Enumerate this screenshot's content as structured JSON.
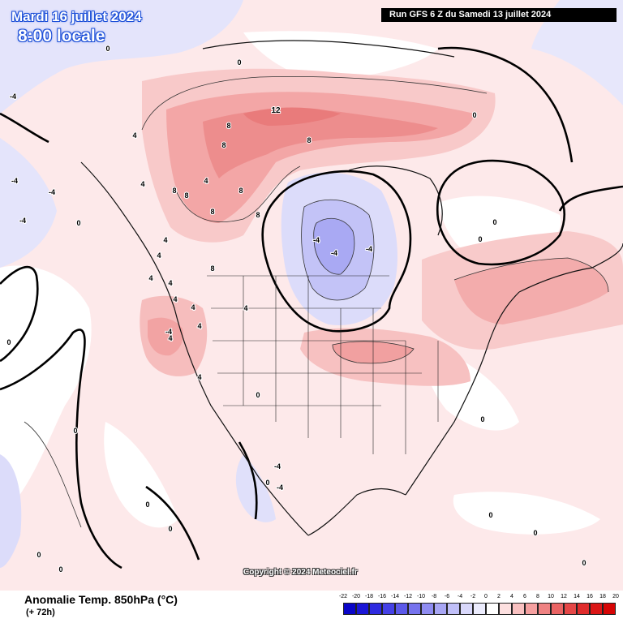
{
  "header": {
    "date": "Mardi 16 juillet 2024",
    "time": "8:00 locale",
    "run": "Run GFS 6 Z du Samedi 13 juillet 2024"
  },
  "copyright": "Copyright © 2024 Meteociel.fr",
  "variable": {
    "title": "Anomalie Temp. 850hPa (°C)",
    "lead": "(+ 72h)"
  },
  "legend": {
    "ticks": [
      "-22",
      "-20",
      "-18",
      "-16",
      "-14",
      "-12",
      "-10",
      "-8",
      "-6",
      "-4",
      "-2",
      "0",
      "2",
      "4",
      "6",
      "8",
      "10",
      "12",
      "14",
      "16",
      "18",
      "20"
    ],
    "colors": [
      "#0a05c8",
      "#1b16d6",
      "#2e2ae0",
      "#4541e6",
      "#5c59ea",
      "#7673ee",
      "#8f8cf1",
      "#a8a6f4",
      "#c0bff8",
      "#d9d8fb",
      "#ececfd",
      "#ffffff",
      "#fde0e0",
      "#f9c1c1",
      "#f5a0a0",
      "#ef8282",
      "#ea6464",
      "#e54747",
      "#e02c2c",
      "#db1616",
      "#d60505"
    ]
  },
  "map_labels": [
    {
      "text": "12",
      "color": "#000000"
    },
    {
      "text": "8",
      "color": "#000000"
    },
    {
      "text": "8",
      "color": "#000000"
    },
    {
      "text": "8",
      "color": "#000000"
    },
    {
      "text": "8",
      "color": "#000000"
    },
    {
      "text": "8",
      "color": "#000000"
    },
    {
      "text": "8",
      "color": "#000000"
    },
    {
      "text": "8",
      "color": "#000000"
    },
    {
      "text": "4",
      "color": "#000000"
    },
    {
      "text": "4",
      "color": "#000000"
    },
    {
      "text": "4",
      "color": "#000000"
    },
    {
      "text": "4",
      "color": "#000000"
    },
    {
      "text": "4",
      "color": "#000000"
    },
    {
      "text": "4",
      "color": "#000000"
    },
    {
      "text": "4",
      "color": "#000000"
    },
    {
      "text": "4",
      "color": "#000000"
    },
    {
      "text": "4",
      "color": "#000000"
    },
    {
      "text": "4",
      "color": "#000000"
    },
    {
      "text": "4",
      "color": "#000000"
    },
    {
      "text": "4",
      "color": "#000000"
    },
    {
      "text": "4",
      "color": "#000000"
    },
    {
      "text": "8",
      "color": "#000000"
    },
    {
      "text": "8",
      "color": "#000000"
    },
    {
      "text": "-4",
      "color": "#000000"
    },
    {
      "text": "-4",
      "color": "#000000"
    },
    {
      "text": "-4",
      "color": "#000000"
    },
    {
      "text": "-4",
      "color": "#000000"
    },
    {
      "text": "-4",
      "color": "#000000"
    },
    {
      "text": "-4",
      "color": "#000000"
    },
    {
      "text": "-4",
      "color": "#000000"
    },
    {
      "text": "-4",
      "color": "#000000"
    },
    {
      "text": "-4",
      "color": "#000000"
    },
    {
      "text": "-4",
      "color": "#000000"
    },
    {
      "text": "0",
      "color": "#000000"
    },
    {
      "text": "0",
      "color": "#000000"
    },
    {
      "text": "0",
      "color": "#000000"
    },
    {
      "text": "0",
      "color": "#000000"
    },
    {
      "text": "0",
      "color": "#000000"
    },
    {
      "text": "0",
      "color": "#000000"
    },
    {
      "text": "0",
      "color": "#000000"
    },
    {
      "text": "0",
      "color": "#000000"
    },
    {
      "text": "0",
      "color": "#000000"
    },
    {
      "text": "0",
      "color": "#000000"
    },
    {
      "text": "0",
      "color": "#000000"
    },
    {
      "text": "0",
      "color": "#000000"
    },
    {
      "text": "0",
      "color": "#000000"
    },
    {
      "text": "0",
      "color": "#000000"
    },
    {
      "text": "0",
      "color": "#000000"
    },
    {
      "text": "0",
      "color": "#000000"
    },
    {
      "text": "0",
      "color": "#000000"
    },
    {
      "text": "0",
      "color": "#000000"
    }
  ]
}
